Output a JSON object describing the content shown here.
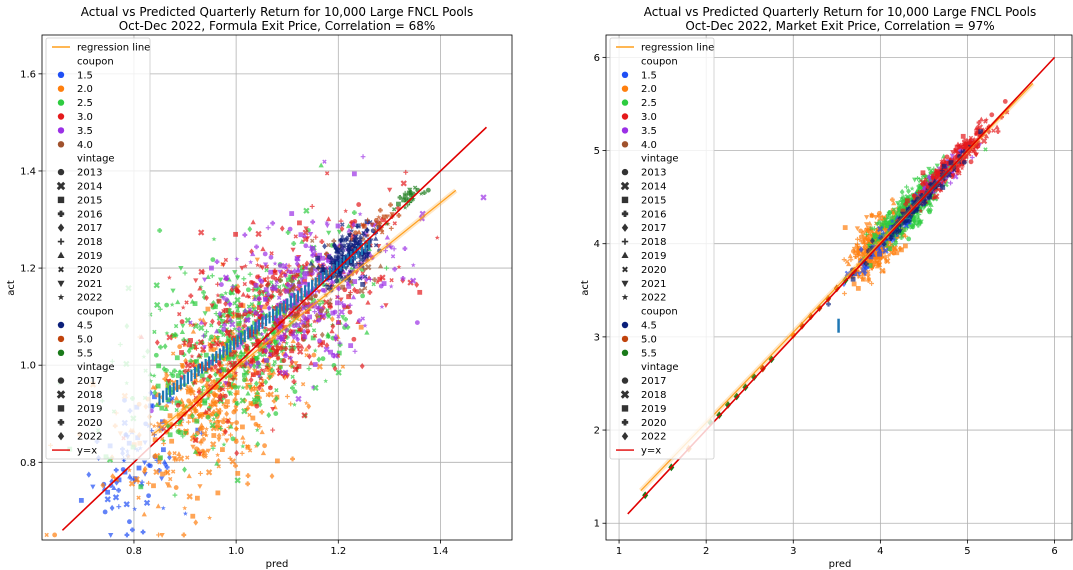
{
  "colors": {
    "grid": "#b0b0b0",
    "regression": "#ff9f1c",
    "identity": "#e00000",
    "step_marker": "#1f77b4",
    "legend_bg": "#ffffff"
  },
  "legend": {
    "items": [
      {
        "kind": "line",
        "label": "regression line",
        "color": "#ff9f1c"
      },
      {
        "kind": "header",
        "label": "coupon"
      },
      {
        "kind": "marker",
        "label": "1.5",
        "shape": "circle",
        "color": "#1f4ff5"
      },
      {
        "kind": "marker",
        "label": "2.0",
        "shape": "circle",
        "color": "#ff7f0e"
      },
      {
        "kind": "marker",
        "label": "2.5",
        "shape": "circle",
        "color": "#2ecc40"
      },
      {
        "kind": "marker",
        "label": "3.0",
        "shape": "circle",
        "color": "#e41a1c"
      },
      {
        "kind": "marker",
        "label": "3.5",
        "shape": "circle",
        "color": "#9b30e6"
      },
      {
        "kind": "marker",
        "label": "4.0",
        "shape": "circle",
        "color": "#a0522d"
      },
      {
        "kind": "header",
        "label": "vintage"
      },
      {
        "kind": "marker",
        "label": "2013",
        "shape": "circle",
        "color": "#333333"
      },
      {
        "kind": "marker",
        "label": "2014",
        "shape": "x",
        "color": "#333333"
      },
      {
        "kind": "marker",
        "label": "2015",
        "shape": "square",
        "color": "#333333"
      },
      {
        "kind": "marker",
        "label": "2016",
        "shape": "plus",
        "color": "#333333"
      },
      {
        "kind": "marker",
        "label": "2017",
        "shape": "diamond",
        "color": "#333333"
      },
      {
        "kind": "marker",
        "label": "2018",
        "shape": "thinplus",
        "color": "#333333"
      },
      {
        "kind": "marker",
        "label": "2019",
        "shape": "triangle-up",
        "color": "#333333"
      },
      {
        "kind": "marker",
        "label": "2020",
        "shape": "smallx",
        "color": "#333333"
      },
      {
        "kind": "marker",
        "label": "2021",
        "shape": "triangle-down",
        "color": "#333333"
      },
      {
        "kind": "marker",
        "label": "2022",
        "shape": "star",
        "color": "#333333"
      },
      {
        "kind": "header",
        "label": "coupon"
      },
      {
        "kind": "marker",
        "label": "4.5",
        "shape": "circle",
        "color": "#0b1f7a"
      },
      {
        "kind": "marker",
        "label": "5.0",
        "shape": "circle",
        "color": "#c0430c"
      },
      {
        "kind": "marker",
        "label": "5.5",
        "shape": "circle",
        "color": "#1a7a1a"
      },
      {
        "kind": "header",
        "label": "vintage"
      },
      {
        "kind": "marker",
        "label": "2017",
        "shape": "circle",
        "color": "#333333"
      },
      {
        "kind": "marker",
        "label": "2018",
        "shape": "x",
        "color": "#333333"
      },
      {
        "kind": "marker",
        "label": "2019",
        "shape": "square",
        "color": "#333333"
      },
      {
        "kind": "marker",
        "label": "2020",
        "shape": "plus",
        "color": "#333333"
      },
      {
        "kind": "marker",
        "label": "2022",
        "shape": "diamond",
        "color": "#333333"
      },
      {
        "kind": "line",
        "label": "y=x",
        "color": "#e00000"
      }
    ]
  },
  "chart_data": [
    {
      "type": "scatter",
      "title": "Actual vs Predicted Quarterly Return for 10,000 Large FNCL Pools",
      "subtitle": "Oct-Dec 2022, Formula Exit Price, Correlation = 68%",
      "xlabel": "pred",
      "ylabel": "act",
      "xlim": [
        0.62,
        1.54
      ],
      "ylim": [
        0.64,
        1.68
      ],
      "xticks": [
        0.8,
        1.0,
        1.2,
        1.4
      ],
      "xtick_labels": [
        "0.8",
        "1.0",
        "1.2",
        "1.4"
      ],
      "yticks": [
        0.8,
        1.0,
        1.2,
        1.4,
        1.6
      ],
      "ytick_labels": [
        "0.8",
        "1.0",
        "1.2",
        "1.4",
        "1.6"
      ],
      "grid": true,
      "correlation": 0.68,
      "regression_line": {
        "x": [
          0.84,
          1.43
        ],
        "y": [
          0.86,
          1.36
        ]
      },
      "identity_line": {
        "x": [
          0.66,
          1.49
        ],
        "y": [
          0.66,
          1.49
        ]
      },
      "series": [
        {
          "coupon": "1.5",
          "color": "#1f4ff5",
          "center": [
            0.8,
            0.8
          ],
          "spread": [
            0.05,
            0.07
          ],
          "corr": 0.3,
          "n": 90
        },
        {
          "coupon": "2.0",
          "color": "#ff7f0e",
          "center": [
            0.95,
            0.93
          ],
          "spread": [
            0.09,
            0.1
          ],
          "corr": 0.55,
          "n": 520
        },
        {
          "coupon": "2.5",
          "color": "#2ecc40",
          "center": [
            1.02,
            1.05
          ],
          "spread": [
            0.11,
            0.1
          ],
          "corr": 0.5,
          "n": 520
        },
        {
          "coupon": "3.0",
          "color": "#e41a1c",
          "center": [
            1.08,
            1.1
          ],
          "spread": [
            0.1,
            0.1
          ],
          "corr": 0.5,
          "n": 450
        },
        {
          "coupon": "3.5",
          "color": "#9b30e6",
          "center": [
            1.14,
            1.15
          ],
          "spread": [
            0.09,
            0.08
          ],
          "corr": 0.45,
          "n": 320
        },
        {
          "coupon": "4.0",
          "color": "#a0522d",
          "center": [
            1.16,
            1.16
          ],
          "spread": [
            0.06,
            0.05
          ],
          "corr": 0.4,
          "n": 60
        },
        {
          "coupon": "4.5",
          "color": "#0b1f7a",
          "center": [
            1.22,
            1.23
          ],
          "spread": [
            0.025,
            0.03
          ],
          "corr": 0.5,
          "n": 170
        },
        {
          "coupon": "5.0",
          "color": "#c0430c",
          "center": [
            1.28,
            1.29
          ],
          "spread": [
            0.02,
            0.02
          ],
          "corr": 0.5,
          "n": 25
        },
        {
          "coupon": "5.5",
          "color": "#1a7a1a",
          "center": [
            1.33,
            1.34
          ],
          "spread": [
            0.02,
            0.02
          ],
          "corr": 0.8,
          "n": 25
        }
      ],
      "step_markers": {
        "x_start": 0.85,
        "x_end": 1.26,
        "y_start": 0.93,
        "y_end": 1.25,
        "count": 60
      }
    },
    {
      "type": "scatter",
      "title": "Actual vs Predicted Quarterly Return for 10,000 Large FNCL Pools",
      "subtitle": "Oct-Dec 2022, Market Exit Price, Correlation = 97%",
      "xlabel": "pred",
      "ylabel": "act",
      "xlim": [
        0.85,
        6.2
      ],
      "ylim": [
        0.82,
        6.24
      ],
      "xticks": [
        1,
        2,
        3,
        4,
        5,
        6
      ],
      "xtick_labels": [
        "1",
        "2",
        "3",
        "4",
        "5",
        "6"
      ],
      "yticks": [
        1,
        2,
        3,
        4,
        5,
        6
      ],
      "ytick_labels": [
        "1",
        "2",
        "3",
        "4",
        "5",
        "6"
      ],
      "grid": true,
      "correlation": 0.97,
      "regression_line": {
        "x": [
          1.25,
          5.75
        ],
        "y": [
          1.35,
          5.72
        ]
      },
      "identity_line": {
        "x": [
          1.1,
          6.0
        ],
        "y": [
          1.1,
          6.0
        ]
      },
      "series": [
        {
          "coupon": "2.0",
          "color": "#ff7f0e",
          "center": [
            3.95,
            3.98
          ],
          "spread": [
            0.15,
            0.17
          ],
          "corr": 0.6,
          "n": 350
        },
        {
          "coupon": "2.5",
          "color": "#2ecc40",
          "center": [
            4.35,
            4.38
          ],
          "spread": [
            0.2,
            0.2
          ],
          "corr": 0.85,
          "n": 420
        },
        {
          "coupon": "1.5",
          "color": "#1f4ff5",
          "center": [
            4.05,
            4.05
          ],
          "spread": [
            0.2,
            0.2
          ],
          "corr": 0.9,
          "n": 60
        },
        {
          "coupon": "3.5",
          "color": "#9b30e6",
          "center": [
            4.7,
            4.72
          ],
          "spread": [
            0.15,
            0.15
          ],
          "corr": 0.9,
          "n": 120
        },
        {
          "coupon": "3.0",
          "color": "#e41a1c",
          "center": [
            4.8,
            4.82
          ],
          "spread": [
            0.25,
            0.25
          ],
          "corr": 0.95,
          "n": 220
        },
        {
          "coupon": "4.5",
          "color": "#0b1f7a",
          "center": [
            4.4,
            4.4
          ],
          "spread": [
            0.3,
            0.3
          ],
          "corr": 0.99,
          "n": 120
        }
      ],
      "diagonal_points": [
        {
          "x": 1.3,
          "y": 1.3,
          "color": "#1a7a1a"
        },
        {
          "x": 1.6,
          "y": 1.6,
          "color": "#1a7a1a"
        },
        {
          "x": 1.8,
          "y": 1.8,
          "color": "#ff7f0e"
        },
        {
          "x": 2.05,
          "y": 2.08,
          "color": "#1a7a1a"
        },
        {
          "x": 2.15,
          "y": 2.16,
          "color": "#1a7a1a"
        },
        {
          "x": 2.25,
          "y": 2.27,
          "color": "#1a7a1a"
        },
        {
          "x": 2.35,
          "y": 2.36,
          "color": "#1a7a1a"
        },
        {
          "x": 2.45,
          "y": 2.46,
          "color": "#1a7a1a"
        },
        {
          "x": 2.55,
          "y": 2.57,
          "color": "#1a7a1a"
        },
        {
          "x": 2.65,
          "y": 2.66,
          "color": "#c0430c"
        },
        {
          "x": 2.75,
          "y": 2.76,
          "color": "#1a7a1a"
        },
        {
          "x": 3.0,
          "y": 3.02,
          "color": "#ff7f0e"
        },
        {
          "x": 3.1,
          "y": 3.12,
          "color": "#c0430c"
        },
        {
          "x": 3.2,
          "y": 3.22,
          "color": "#c0430c"
        },
        {
          "x": 3.3,
          "y": 3.31,
          "color": "#c0430c"
        },
        {
          "x": 3.4,
          "y": 3.41,
          "color": "#c0430c"
        },
        {
          "x": 3.5,
          "y": 3.52,
          "color": "#c0430c"
        },
        {
          "x": 3.6,
          "y": 3.61,
          "color": "#1a7a1a"
        },
        {
          "x": 3.7,
          "y": 3.71,
          "color": "#c0430c"
        }
      ],
      "outlier_marker": {
        "x": 3.52,
        "y": 3.12
      }
    }
  ]
}
